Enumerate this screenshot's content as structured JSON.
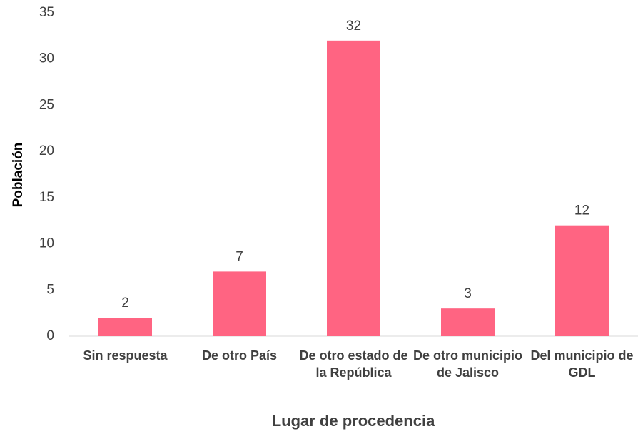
{
  "chart_data": {
    "type": "bar",
    "x_label": "Lugar de procedencia",
    "y_label": "Población",
    "categories": [
      "Sin respuesta",
      "De otro País",
      "De otro estado de la República",
      "De otro municipio de Jalisco",
      "Del municipio de GDL"
    ],
    "values": [
      2,
      7,
      32,
      3,
      12
    ],
    "color": "#ff6482",
    "ylim": [
      0,
      35
    ],
    "yticks": [
      0,
      5,
      10,
      15,
      20,
      25,
      30,
      35
    ],
    "grid": false
  }
}
